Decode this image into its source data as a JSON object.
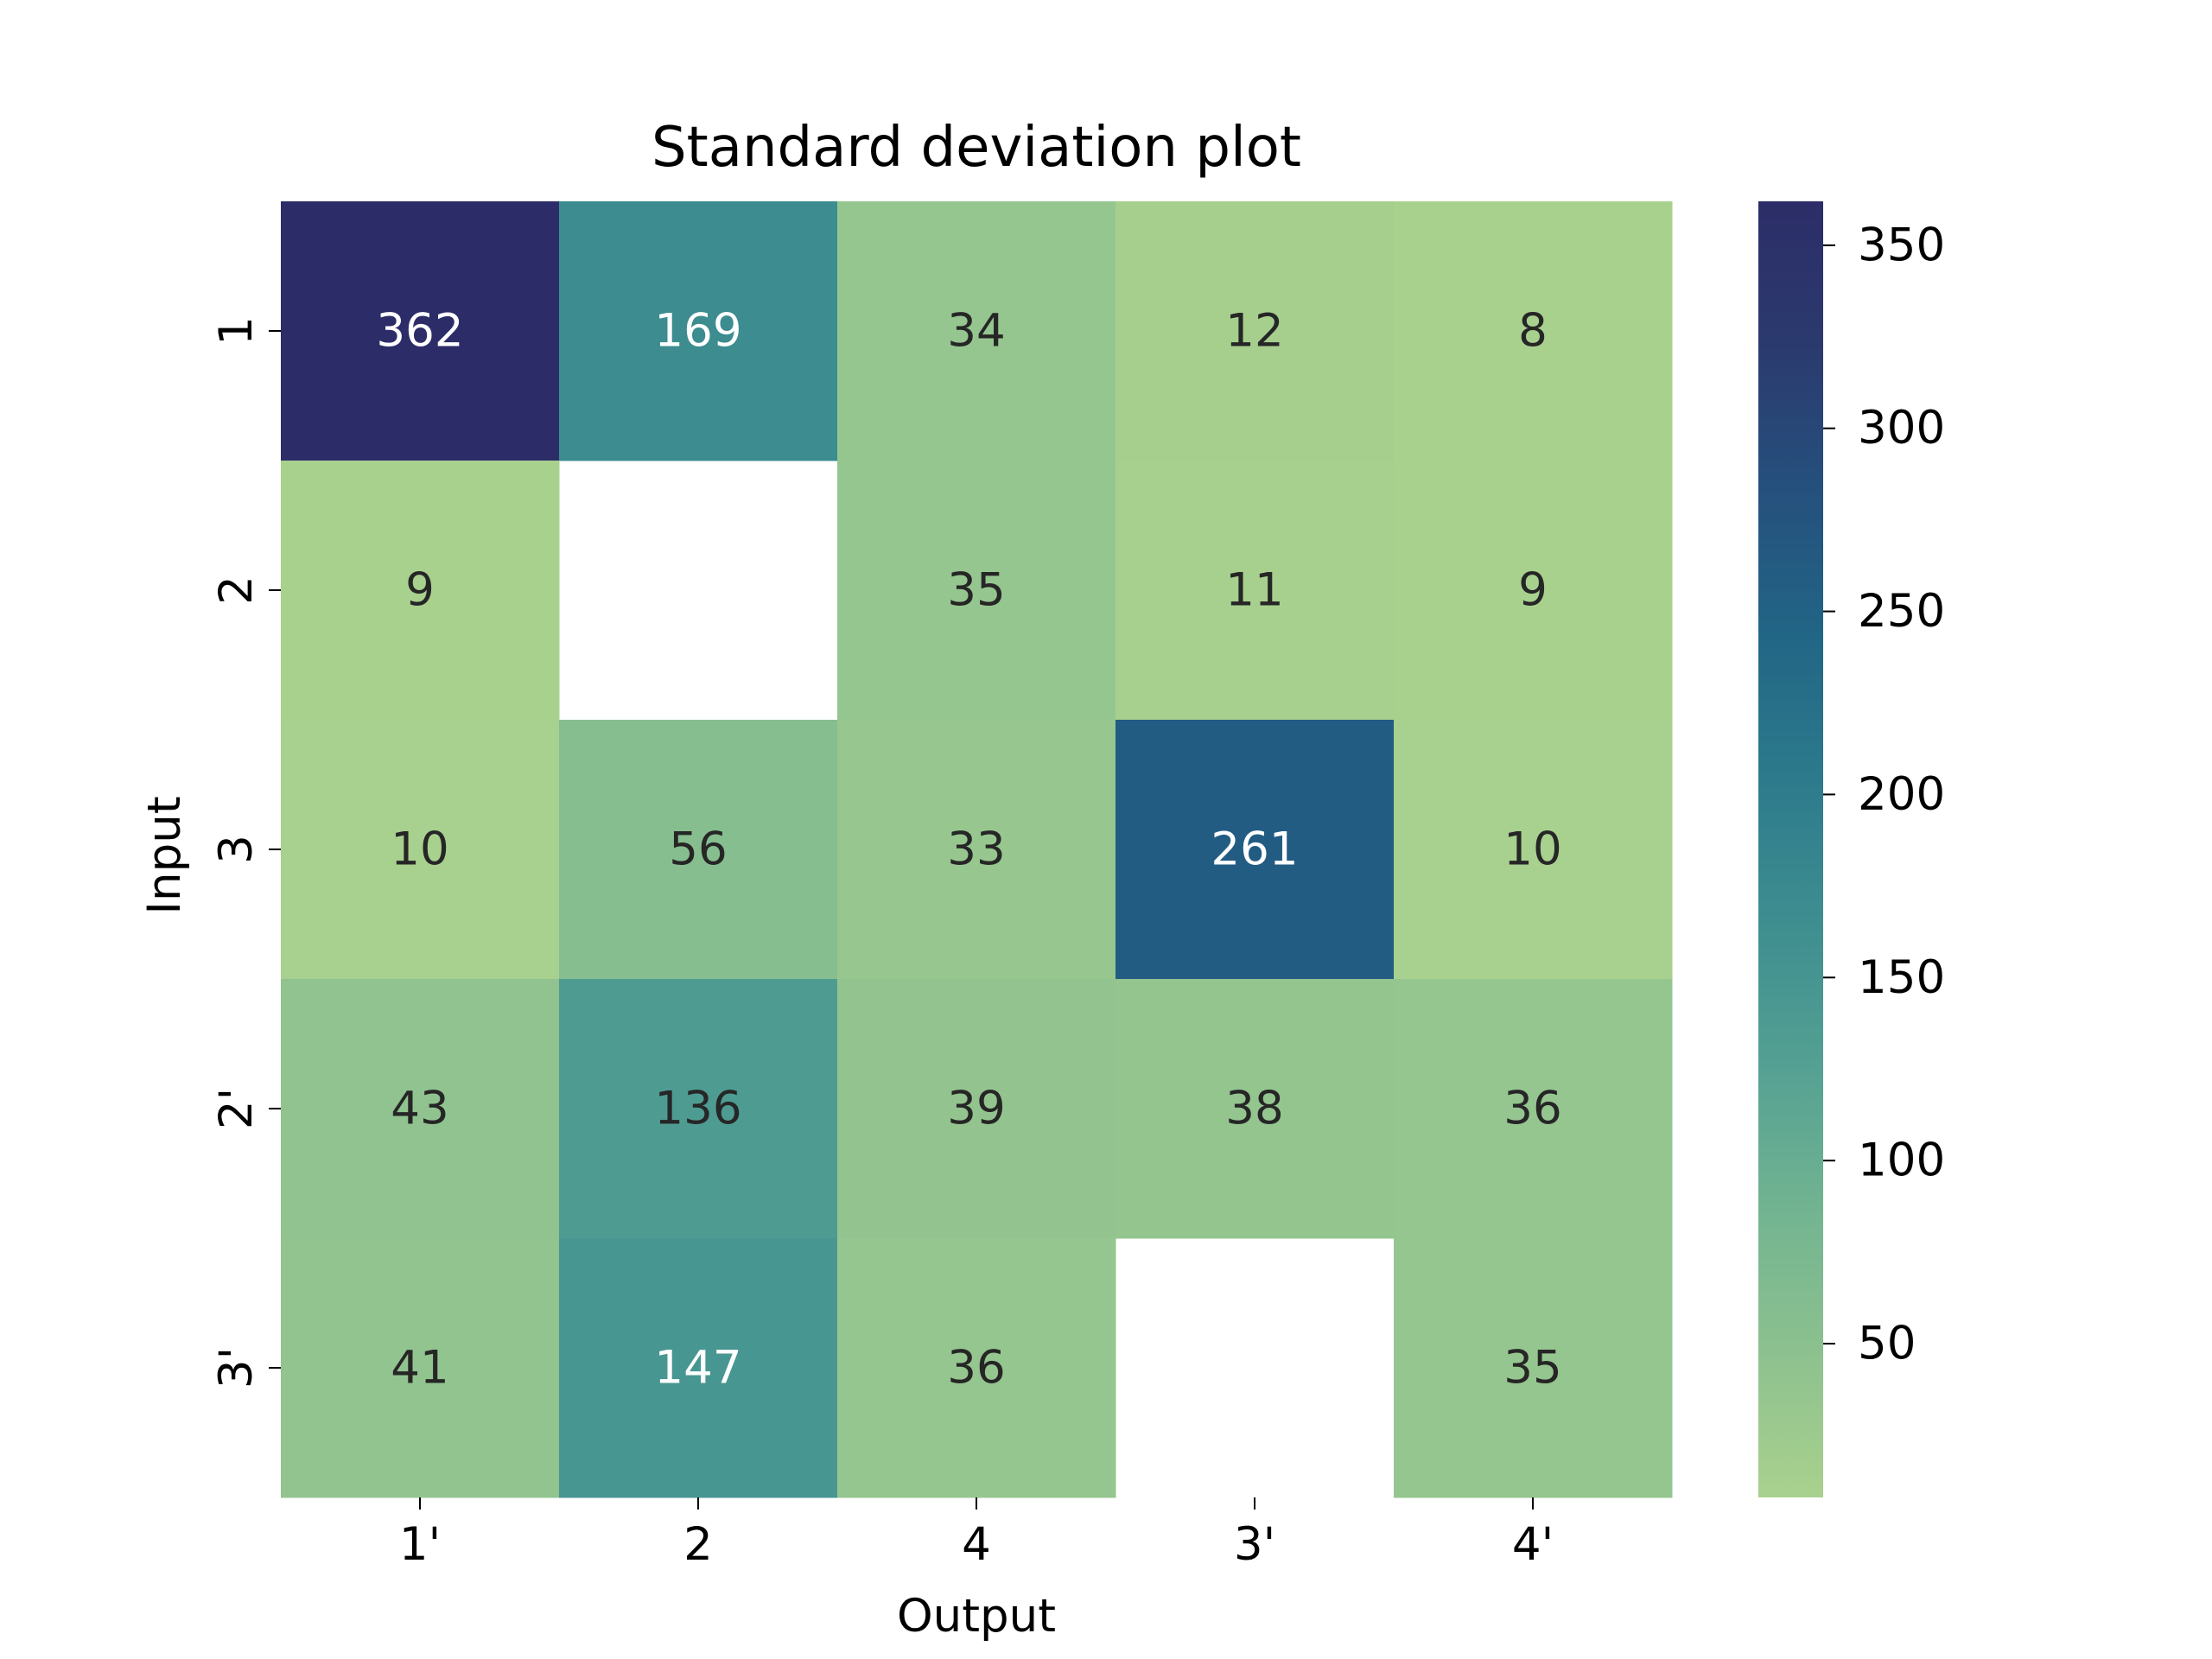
{
  "chart_data": {
    "type": "heatmap",
    "title": "Standard deviation plot",
    "xlabel": "Output",
    "ylabel": "Input",
    "x_categories": [
      "1'",
      "2",
      "4",
      "3'",
      "4'"
    ],
    "y_categories": [
      "1",
      "2",
      "3",
      "2'",
      "3'"
    ],
    "values": [
      [
        362,
        169,
        34,
        12,
        8
      ],
      [
        9,
        null,
        35,
        11,
        9
      ],
      [
        10,
        56,
        33,
        261,
        10
      ],
      [
        43,
        136,
        39,
        38,
        36
      ],
      [
        41,
        147,
        36,
        null,
        35
      ]
    ],
    "annotations": [
      [
        "362",
        "169",
        "34",
        "12",
        "8"
      ],
      [
        "9",
        "",
        "35",
        "11",
        "9"
      ],
      [
        "10",
        "56",
        "33",
        "261",
        "10"
      ],
      [
        "43",
        "136",
        "39",
        "38",
        "36"
      ],
      [
        "41",
        "147",
        "36",
        "",
        "35"
      ]
    ],
    "colorbar": {
      "range": [
        8,
        362
      ],
      "ticks": [
        50,
        100,
        150,
        200,
        250,
        300,
        350
      ],
      "tick_labels": [
        "50",
        "100",
        "150",
        "200",
        "250",
        "300",
        "350"
      ],
      "colormap": [
        "#a9d18e",
        "#8dc18f",
        "#72b491",
        "#54a093",
        "#3e8e90",
        "#2c7a8c",
        "#226585",
        "#25507d",
        "#2b3a6e",
        "#2c2d68"
      ]
    },
    "grid": false,
    "legend": "colorbar-right"
  }
}
